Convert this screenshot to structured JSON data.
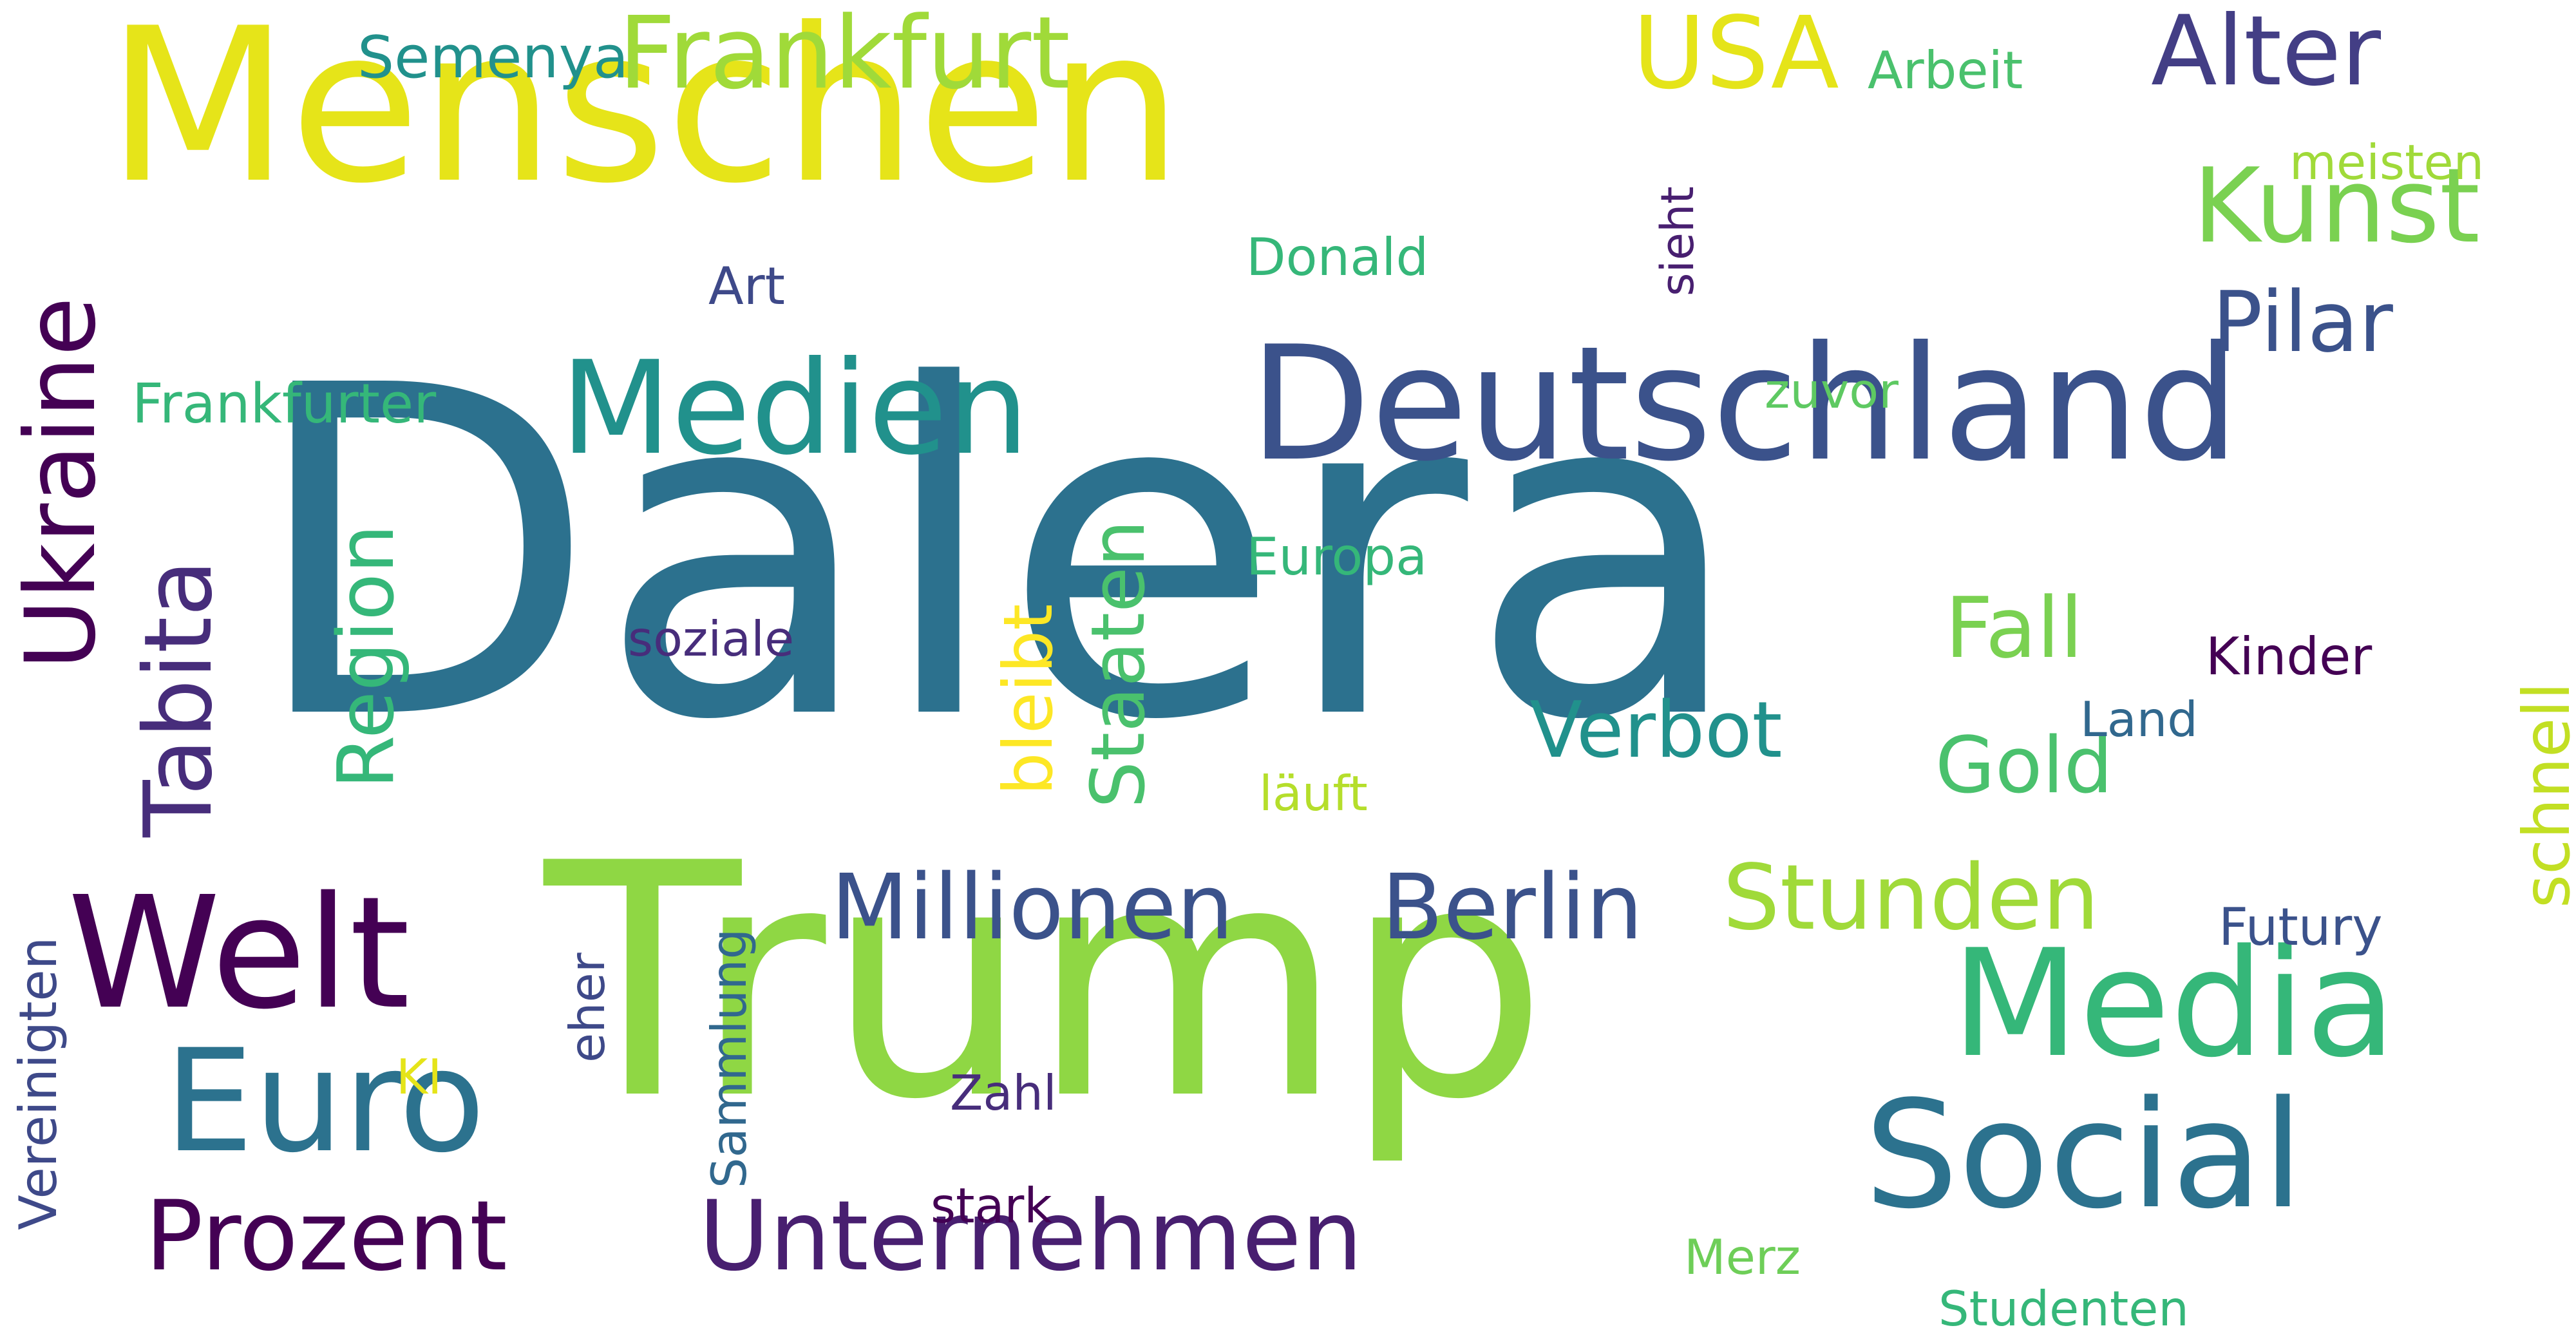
{
  "words": [
    {
      "text": "Dalera",
      "color": "#2c718e",
      "orientation": "horizontal"
    },
    {
      "text": "Menschen",
      "color": "#e6e419",
      "orientation": "horizontal"
    },
    {
      "text": "Trump",
      "color": "#8fd744",
      "orientation": "horizontal"
    },
    {
      "text": "Deutschland",
      "color": "#3b528b",
      "orientation": "horizontal"
    },
    {
      "text": "Welt",
      "color": "#440154",
      "orientation": "horizontal"
    },
    {
      "text": "Media",
      "color": "#35b779",
      "orientation": "horizontal"
    },
    {
      "text": "Social",
      "color": "#2c728e",
      "orientation": "horizontal"
    },
    {
      "text": "Euro",
      "color": "#2c728e",
      "orientation": "horizontal"
    },
    {
      "text": "Prozent",
      "color": "#440154",
      "orientation": "horizontal"
    },
    {
      "text": "Unternehmen",
      "color": "#481f70",
      "orientation": "horizontal"
    },
    {
      "text": "Medien",
      "color": "#21918c",
      "orientation": "horizontal"
    },
    {
      "text": "Frankfurt",
      "color": "#a0da39",
      "orientation": "horizontal"
    },
    {
      "text": "USA",
      "color": "#e5e419",
      "orientation": "horizontal"
    },
    {
      "text": "Alter",
      "color": "#433e85",
      "orientation": "horizontal"
    },
    {
      "text": "Kunst",
      "color": "#7ad151",
      "orientation": "horizontal"
    },
    {
      "text": "Millionen",
      "color": "#3b528b",
      "orientation": "horizontal"
    },
    {
      "text": "Berlin",
      "color": "#3b528b",
      "orientation": "horizontal"
    },
    {
      "text": "Stunden",
      "color": "#a0da39",
      "orientation": "horizontal"
    },
    {
      "text": "Verbot",
      "color": "#21918c",
      "orientation": "horizontal"
    },
    {
      "text": "Pilar",
      "color": "#3b528b",
      "orientation": "horizontal"
    },
    {
      "text": "Fall",
      "color": "#7ad151",
      "orientation": "horizontal"
    },
    {
      "text": "Gold",
      "color": "#4ac16d",
      "orientation": "horizontal"
    },
    {
      "text": "Ukraine",
      "color": "#440154",
      "orientation": "vertical"
    },
    {
      "text": "Tabita",
      "color": "#472d7b",
      "orientation": "vertical"
    },
    {
      "text": "Region",
      "color": "#35b779",
      "orientation": "vertical"
    },
    {
      "text": "Staaten",
      "color": "#4ac16d",
      "orientation": "vertical"
    },
    {
      "text": "bleibt",
      "color": "#fde725",
      "orientation": "vertical"
    },
    {
      "text": "schnell",
      "color": "#c2df23",
      "orientation": "vertical"
    },
    {
      "text": "Semenya",
      "color": "#21918c",
      "orientation": "horizontal"
    },
    {
      "text": "Arbeit",
      "color": "#4ac16d",
      "orientation": "horizontal"
    },
    {
      "text": "meisten",
      "color": "#a0da39",
      "orientation": "horizontal"
    },
    {
      "text": "Donald",
      "color": "#35b779",
      "orientation": "horizontal"
    },
    {
      "text": "Art",
      "color": "#3e4989",
      "orientation": "horizontal"
    },
    {
      "text": "sieht",
      "color": "#481f70",
      "orientation": "vertical"
    },
    {
      "text": "Frankfurter",
      "color": "#35b779",
      "orientation": "horizontal"
    },
    {
      "text": "zuvor",
      "color": "#5ec962",
      "orientation": "horizontal"
    },
    {
      "text": "Europa",
      "color": "#35b779",
      "orientation": "horizontal"
    },
    {
      "text": "soziale",
      "color": "#472d7b",
      "orientation": "horizontal"
    },
    {
      "text": "Kinder",
      "color": "#440154",
      "orientation": "horizontal"
    },
    {
      "text": "Land",
      "color": "#31688e",
      "orientation": "horizontal"
    },
    {
      "text": "läuft",
      "color": "#b5de2b",
      "orientation": "horizontal"
    },
    {
      "text": "Futury",
      "color": "#3b528b",
      "orientation": "horizontal"
    },
    {
      "text": "Vereinigten",
      "color": "#3e4989",
      "orientation": "vertical"
    },
    {
      "text": "KI",
      "color": "#e5e419",
      "orientation": "horizontal"
    },
    {
      "text": "eher",
      "color": "#3e4989",
      "orientation": "vertical"
    },
    {
      "text": "Sammlung",
      "color": "#31688e",
      "orientation": "vertical"
    },
    {
      "text": "Zahl",
      "color": "#472d7b",
      "orientation": "horizontal"
    },
    {
      "text": "stark",
      "color": "#440154",
      "orientation": "horizontal"
    },
    {
      "text": "Merz",
      "color": "#6ece58",
      "orientation": "horizontal"
    },
    {
      "text": "Studenten",
      "color": "#35b779",
      "orientation": "horizontal"
    }
  ]
}
